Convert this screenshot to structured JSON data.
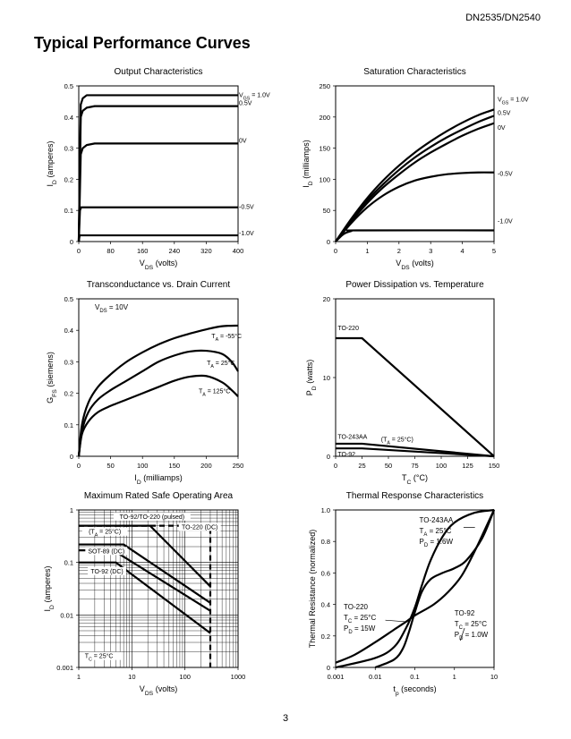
{
  "header": {
    "doc_id": "DN2535/DN2540",
    "section_title": "Typical Performance Curves",
    "page_number": "3"
  },
  "chart_data": [
    {
      "id": "output",
      "type": "line",
      "title": "Output Characteristics",
      "xlabel": "V_DS (volts)",
      "ylabel": "I_D (amperes)",
      "xlim": [
        0,
        400
      ],
      "ylim": [
        0,
        0.5
      ],
      "xticks": [
        "0",
        "80",
        "160",
        "240",
        "320",
        "400"
      ],
      "yticks": [
        "0",
        "0.1",
        "0.2",
        "0.3",
        "0.4",
        "0.5"
      ],
      "grid": false,
      "series": [
        {
          "name": "V_GS = 1.0V",
          "x": [
            0,
            5,
            10,
            20,
            40,
            400
          ],
          "y": [
            0,
            0.44,
            0.46,
            0.47,
            0.47,
            0.47
          ]
        },
        {
          "name": "0.5V",
          "x": [
            0,
            5,
            10,
            20,
            40,
            400
          ],
          "y": [
            0,
            0.4,
            0.42,
            0.43,
            0.435,
            0.435
          ]
        },
        {
          "name": "0V",
          "x": [
            0,
            5,
            10,
            20,
            40,
            400
          ],
          "y": [
            0,
            0.28,
            0.3,
            0.31,
            0.315,
            0.315
          ]
        },
        {
          "name": "-0.5V",
          "x": [
            0,
            3,
            6,
            400
          ],
          "y": [
            0,
            0.1,
            0.11,
            0.11
          ]
        },
        {
          "name": "-1.0V",
          "x": [
            0,
            2,
            4,
            400
          ],
          "y": [
            0,
            0.018,
            0.02,
            0.02
          ]
        }
      ]
    },
    {
      "id": "saturation",
      "type": "line",
      "title": "Saturation Characteristics",
      "xlabel": "V_DS (volts)",
      "ylabel": "I_D (milliamps)",
      "xlim": [
        0,
        5
      ],
      "ylim": [
        0,
        250
      ],
      "xticks": [
        "0",
        "1",
        "2",
        "3",
        "4",
        "5"
      ],
      "yticks": [
        "0",
        "50",
        "100",
        "150",
        "200",
        "250"
      ],
      "grid": false,
      "series": [
        {
          "name": "V_GS = 1.0V",
          "x": [
            0,
            0.5,
            1,
            1.5,
            2,
            2.5,
            3,
            3.5,
            4,
            4.5,
            5
          ],
          "y": [
            0,
            37,
            70,
            98,
            122,
            143,
            161,
            177,
            191,
            203,
            212
          ]
        },
        {
          "name": "0.5V",
          "x": [
            0,
            0.5,
            1,
            1.5,
            2,
            2.5,
            3,
            3.5,
            4,
            4.5,
            5
          ],
          "y": [
            0,
            35,
            66,
            92,
            115,
            135,
            152,
            167,
            180,
            192,
            202
          ]
        },
        {
          "name": "0V",
          "x": [
            0,
            0.5,
            1,
            1.5,
            2,
            2.5,
            3,
            3.5,
            4,
            4.5,
            5
          ],
          "y": [
            0,
            33,
            62,
            87,
            108,
            127,
            143,
            157,
            170,
            181,
            190
          ]
        },
        {
          "name": "-0.5V",
          "x": [
            0,
            0.5,
            1,
            1.5,
            2,
            2.5,
            3,
            3.5,
            4,
            4.5,
            5
          ],
          "y": [
            0,
            30,
            55,
            74,
            88,
            98,
            104,
            108,
            110,
            111,
            111
          ]
        },
        {
          "name": "-1.0V",
          "x": [
            0,
            0.25,
            0.5,
            0.75,
            5
          ],
          "y": [
            0,
            12,
            17,
            18,
            18
          ]
        }
      ],
      "series_labels": [
        "V_GS = 1.0V",
        "0.5V",
        "0V",
        "-0.5V",
        "-1.0V"
      ]
    },
    {
      "id": "transconductance",
      "type": "line",
      "title": "Transconductance vs. Drain Current",
      "xlabel": "I_D (milliamps)",
      "ylabel": "G_FS (siemens)",
      "xlim": [
        0,
        250
      ],
      "ylim": [
        0,
        0.5
      ],
      "xticks": [
        "0",
        "50",
        "100",
        "150",
        "200",
        "250"
      ],
      "yticks": [
        "0",
        "0.1",
        "0.2",
        "0.3",
        "0.4",
        "0.5"
      ],
      "note": "V_DS = 10V",
      "grid": false,
      "series": [
        {
          "name": "T_A = -55°C",
          "x": [
            0,
            5,
            15,
            30,
            50,
            75,
            100,
            125,
            150,
            175,
            200,
            225,
            250
          ],
          "y": [
            0,
            0.1,
            0.17,
            0.22,
            0.26,
            0.3,
            0.33,
            0.355,
            0.375,
            0.39,
            0.403,
            0.413,
            0.415
          ]
        },
        {
          "name": "T_A = 25°C",
          "x": [
            0,
            5,
            15,
            30,
            50,
            75,
            100,
            125,
            150,
            175,
            200,
            225,
            240,
            250
          ],
          "y": [
            0,
            0.08,
            0.14,
            0.18,
            0.21,
            0.24,
            0.27,
            0.3,
            0.32,
            0.333,
            0.335,
            0.325,
            0.3,
            0.27
          ]
        },
        {
          "name": "T_A = 125°C",
          "x": [
            0,
            5,
            15,
            30,
            50,
            75,
            100,
            125,
            150,
            175,
            200,
            225,
            240,
            250
          ],
          "y": [
            0,
            0.07,
            0.11,
            0.14,
            0.16,
            0.18,
            0.2,
            0.22,
            0.24,
            0.253,
            0.255,
            0.235,
            0.21,
            0.19
          ]
        }
      ]
    },
    {
      "id": "power",
      "type": "line",
      "title": "Power Dissipation vs. Temperature",
      "xlabel": "T_C (°C)",
      "ylabel": "P_D (watts)",
      "xlim": [
        0,
        150
      ],
      "ylim": [
        0,
        20
      ],
      "xticks": [
        "0",
        "25",
        "50",
        "75",
        "100",
        "125",
        "150"
      ],
      "yticks": [
        "0",
        "10",
        "20"
      ],
      "note": "(T_A = 25°C)",
      "grid": false,
      "series": [
        {
          "name": "TO-220",
          "x": [
            0,
            25,
            150
          ],
          "y": [
            15,
            15,
            0
          ]
        },
        {
          "name": "TO-243AA",
          "x": [
            0,
            25,
            150
          ],
          "y": [
            1.6,
            1.6,
            0
          ]
        },
        {
          "name": "TO-92",
          "x": [
            0,
            25,
            150
          ],
          "y": [
            1.0,
            1.0,
            0
          ]
        }
      ]
    },
    {
      "id": "safe_area",
      "type": "line",
      "title": "Maximum Rated Safe Operating Area",
      "xlabel": "V_DS (volts)",
      "ylabel": "I_D (amperes)",
      "xscale": "log",
      "yscale": "log",
      "xlim": [
        1,
        1000
      ],
      "ylim": [
        0.001,
        1
      ],
      "xticks": [
        "1",
        "10",
        "100",
        "1000"
      ],
      "yticks": [
        "0.001",
        "0.01",
        "0.1",
        "1"
      ],
      "grid": true,
      "labels": [
        "TO-92/TO-220 (pulsed)",
        "TO-220 (DC)",
        "(T_A = 25°C)",
        "SOT-89 (DC)",
        "TO-92 (DC)",
        "T_C = 25°C"
      ],
      "series": [
        {
          "name": "TO-92/TO-220 (pulsed)",
          "style": "dashed",
          "x": [
            1,
            25,
            35,
            300,
            300
          ],
          "y": [
            0.5,
            0.5,
            0.5,
            0.5,
            0.001
          ]
        },
        {
          "name": "TO-220 (DC)",
          "x": [
            1,
            22,
            300
          ],
          "y": [
            0.5,
            0.5,
            0.035
          ]
        },
        {
          "name": "(T_A = 25°C)",
          "x": [
            1,
            7,
            300
          ],
          "y": [
            0.22,
            0.22,
            0.017
          ]
        },
        {
          "name": "SOT-89 (DC)",
          "x": [
            1,
            4.5,
            300
          ],
          "y": [
            0.17,
            0.17,
            0.012
          ]
        },
        {
          "name": "TO-92 (DC)",
          "x": [
            1,
            5,
            300
          ],
          "y": [
            0.1,
            0.1,
            0.0045
          ]
        }
      ]
    },
    {
      "id": "thermal",
      "type": "line",
      "title": "Thermal Response Characteristics",
      "xlabel": "t_p (seconds)",
      "ylabel": "Thermal Resistance (normalized)",
      "xscale": "log",
      "xlim": [
        0.001,
        10
      ],
      "ylim": [
        0,
        1.0
      ],
      "xticks": [
        "0.001",
        "0.01",
        "0.1",
        "1",
        "10"
      ],
      "yticks": [
        "0",
        "0.2",
        "0.4",
        "0.6",
        "0.8",
        "1.0"
      ],
      "grid": false,
      "annotations": [
        {
          "name": "TO-243AA",
          "text": [
            "TO-243AA",
            "T_A = 25°C",
            "P_D = 1.6W"
          ]
        },
        {
          "name": "TO-220",
          "text": [
            "TO-220",
            "T_C = 25°C",
            "P_D = 15W"
          ]
        },
        {
          "name": "TO-92",
          "text": [
            "TO-92",
            "T_C = 25°C",
            "P_D = 1.0W"
          ]
        }
      ],
      "series": [
        {
          "name": "TO-243AA",
          "x": [
            0.001,
            0.01,
            0.03,
            0.06,
            0.1,
            0.15,
            0.25,
            0.5,
            1,
            3,
            10
          ],
          "y": [
            0,
            0.06,
            0.13,
            0.25,
            0.38,
            0.52,
            0.68,
            0.83,
            0.92,
            0.98,
            1.0
          ]
        },
        {
          "name": "TO-220",
          "x": [
            0.001,
            0.003,
            0.01,
            0.03,
            0.06,
            0.1,
            0.3,
            0.7,
            1.5,
            3,
            6,
            10
          ],
          "y": [
            0.03,
            0.08,
            0.16,
            0.24,
            0.29,
            0.33,
            0.4,
            0.48,
            0.58,
            0.72,
            0.88,
            1.0
          ]
        },
        {
          "name": "TO-92",
          "x": [
            0.01,
            0.03,
            0.05,
            0.07,
            0.1,
            0.15,
            0.25,
            0.5,
            1,
            2,
            5,
            10
          ],
          "y": [
            0,
            0.05,
            0.12,
            0.22,
            0.35,
            0.48,
            0.56,
            0.6,
            0.63,
            0.68,
            0.82,
            1.0
          ]
        }
      ]
    }
  ]
}
